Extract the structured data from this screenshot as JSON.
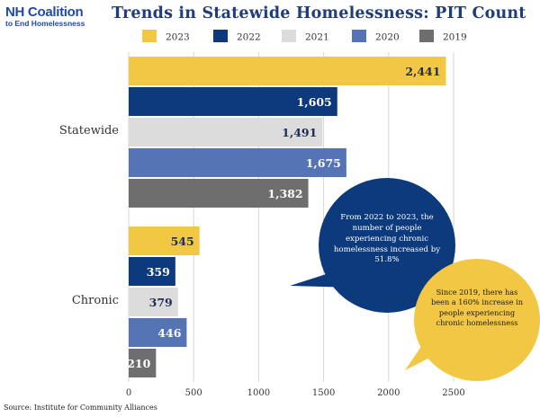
{
  "branding": {
    "line1": "NH Coalition",
    "line2": "to End Homelessness"
  },
  "title": "Trends in Statewide Homelessness:  PIT Count",
  "source": "Source: Institute for Community Alliances",
  "colors": {
    "title": "#1f3d7a",
    "logo": "#1f4aa8",
    "bubble_blue": "#0d3a7c",
    "bubble_yellow": "#f2c744"
  },
  "chart_data": {
    "type": "bar",
    "orientation": "horizontal",
    "categories": [
      "Statewide",
      "Chronic"
    ],
    "series": [
      {
        "name": "2023",
        "color": "#f2c744",
        "values": [
          2441,
          545
        ],
        "labels": [
          "2,441",
          "545"
        ]
      },
      {
        "name": "2022",
        "color": "#0d3a7c",
        "values": [
          1605,
          359
        ],
        "labels": [
          "1,605",
          "359"
        ]
      },
      {
        "name": "2021",
        "color": "#dcdcdc",
        "values": [
          1491,
          379
        ],
        "labels": [
          "1,491",
          "379"
        ]
      },
      {
        "name": "2020",
        "color": "#5474b6",
        "values": [
          1675,
          446
        ],
        "labels": [
          "1,675",
          "446"
        ]
      },
      {
        "name": "2019",
        "color": "#6e6e6e",
        "values": [
          1382,
          210
        ],
        "labels": [
          "1,382",
          "210"
        ]
      }
    ],
    "xlim": [
      0,
      2500
    ],
    "xticks": [
      0,
      500,
      1000,
      1500,
      2000,
      2500
    ],
    "grid": true,
    "legend": "top",
    "annotations": [
      "From 2022 to 2023, the number of people experiencing chronic homelessness increased by 51.8%",
      "Since 2019, there has been a 160% increase in people experiencing chronic homelessness"
    ]
  }
}
